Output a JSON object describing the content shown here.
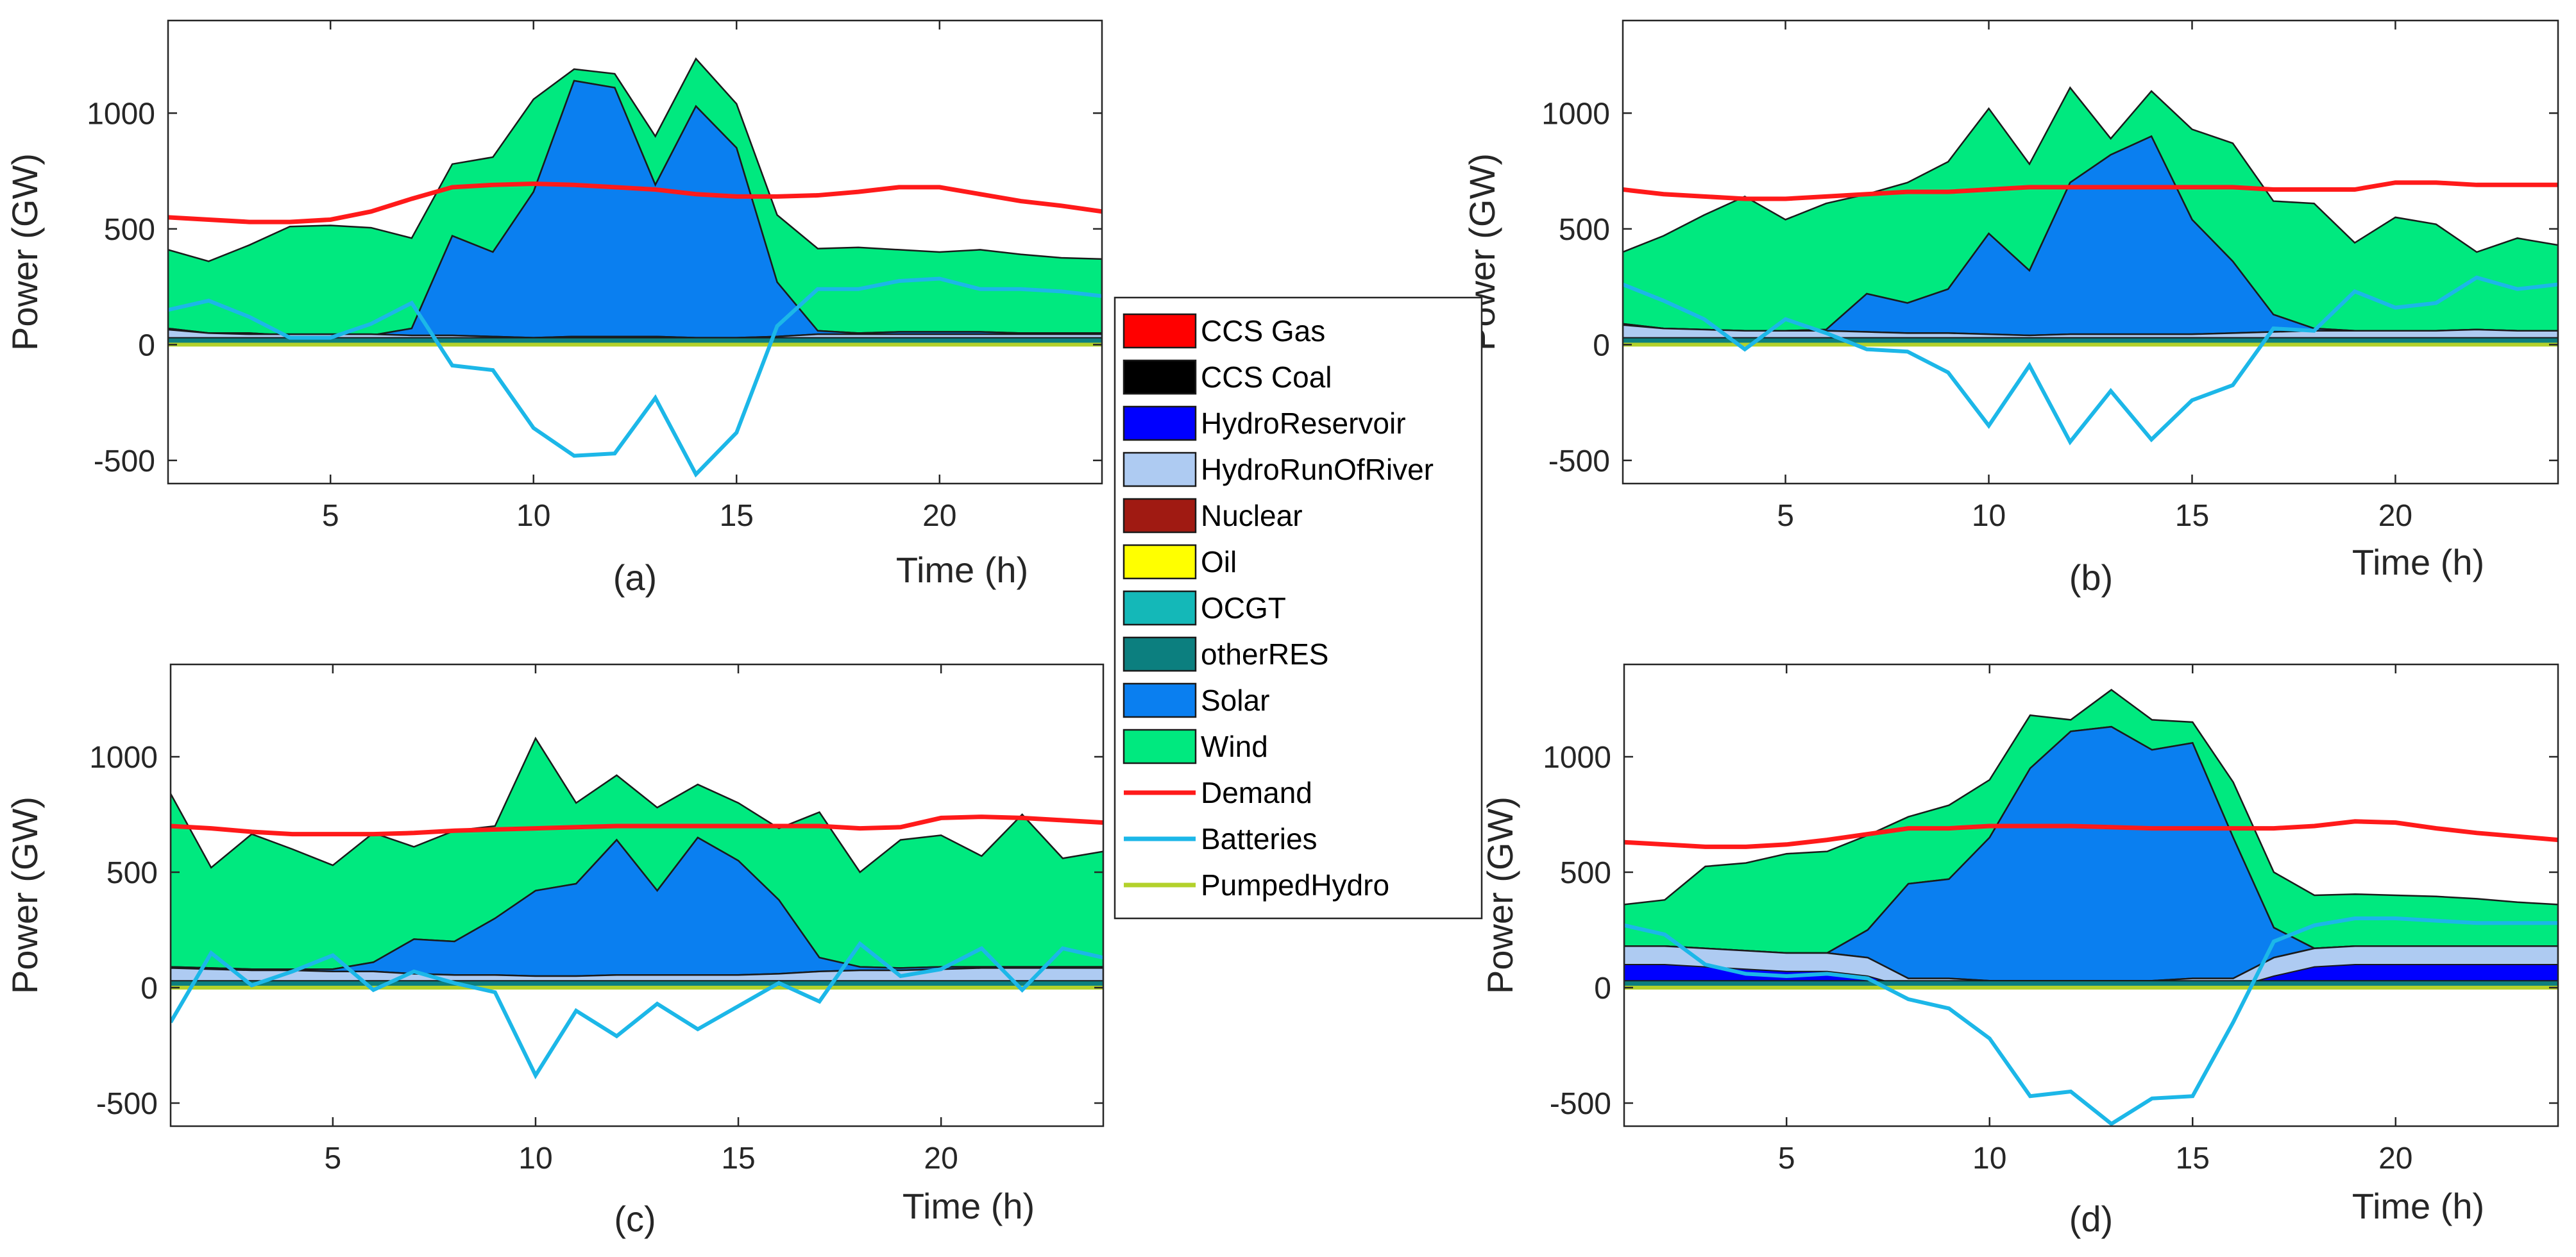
{
  "figure": {
    "legend": [
      {
        "label": "CCS Gas",
        "color": "#ff0000",
        "kind": "patch"
      },
      {
        "label": "CCS Coal",
        "color": "#000000",
        "kind": "patch"
      },
      {
        "label": "HydroReservoir",
        "color": "#0000ff",
        "kind": "patch"
      },
      {
        "label": "HydroRunOfRiver",
        "color": "#aecbf2",
        "kind": "patch"
      },
      {
        "label": "Nuclear",
        "color": "#a01a12",
        "kind": "patch"
      },
      {
        "label": "Oil",
        "color": "#ffff00",
        "kind": "patch"
      },
      {
        "label": "OCGT",
        "color": "#14b8b8",
        "kind": "patch"
      },
      {
        "label": "otherRES",
        "color": "#0c7f7f",
        "kind": "patch"
      },
      {
        "label": "Solar",
        "color": "#0a7ff0",
        "kind": "patch"
      },
      {
        "label": "Wind",
        "color": "#00e97f",
        "kind": "patch"
      },
      {
        "label": "Demand",
        "color": "#ff1a1a",
        "kind": "line"
      },
      {
        "label": "Batteries",
        "color": "#1cb7e8",
        "kind": "line"
      },
      {
        "label": "PumpedHydro",
        "color": "#b3d12b",
        "kind": "line"
      }
    ]
  },
  "chart_data": [
    {
      "type": "area",
      "panel": "(a)",
      "ylabel": "Power (GW)",
      "xlabel": "Time (h)",
      "xlim": [
        1,
        24
      ],
      "ylim": [
        -600,
        1400
      ],
      "xticks": [
        5,
        10,
        15,
        20
      ],
      "yticks": [
        -500,
        0,
        500,
        1000
      ],
      "x": [
        1,
        2,
        3,
        4,
        5,
        6,
        7,
        8,
        9,
        10,
        11,
        12,
        13,
        14,
        15,
        16,
        17,
        18,
        19,
        20,
        21,
        22,
        23,
        24
      ],
      "base": [
        65,
        50,
        45,
        45,
        45,
        45,
        40,
        40,
        35,
        30,
        35,
        35,
        35,
        30,
        30,
        35,
        45,
        45,
        45,
        45,
        45,
        45,
        45,
        45
      ],
      "solar": [
        70,
        50,
        50,
        40,
        40,
        40,
        70,
        470,
        400,
        660,
        1140,
        1110,
        690,
        1030,
        850,
        270,
        60,
        50,
        55,
        55,
        55,
        50,
        50,
        50
      ],
      "total": [
        410,
        360,
        430,
        510,
        515,
        505,
        460,
        780,
        810,
        1060,
        1190,
        1170,
        900,
        1235,
        1040,
        560,
        415,
        420,
        410,
        400,
        410,
        390,
        375,
        370
      ],
      "demand": [
        550,
        540,
        530,
        530,
        540,
        575,
        630,
        680,
        690,
        695,
        690,
        680,
        670,
        650,
        640,
        640,
        645,
        660,
        680,
        680,
        650,
        620,
        600,
        575
      ],
      "batteries": [
        150,
        190,
        120,
        30,
        30,
        90,
        180,
        -90,
        -110,
        -360,
        -480,
        -470,
        -230,
        -560,
        -380,
        80,
        240,
        240,
        275,
        285,
        240,
        240,
        230,
        210
      ],
      "pumped": [
        0,
        0,
        0,
        0,
        0,
        0,
        0,
        0,
        0,
        0,
        0,
        0,
        0,
        0,
        0,
        0,
        0,
        0,
        0,
        0,
        0,
        0,
        0,
        0
      ]
    },
    {
      "type": "area",
      "panel": "(b)",
      "ylabel": "Power (GW)",
      "xlabel": "Time (h)",
      "xlim": [
        1,
        24
      ],
      "ylim": [
        -600,
        1400
      ],
      "xticks": [
        5,
        10,
        15,
        20
      ],
      "yticks": [
        -500,
        0,
        500,
        1000
      ],
      "x": [
        1,
        2,
        3,
        4,
        5,
        6,
        7,
        8,
        9,
        10,
        11,
        12,
        13,
        14,
        15,
        16,
        17,
        18,
        19,
        20,
        21,
        22,
        23,
        24
      ],
      "base": [
        85,
        70,
        65,
        60,
        60,
        60,
        55,
        50,
        50,
        45,
        40,
        45,
        45,
        45,
        45,
        50,
        55,
        60,
        60,
        60,
        60,
        65,
        60,
        60
      ],
      "solar": [
        90,
        70,
        65,
        60,
        60,
        65,
        220,
        180,
        240,
        480,
        320,
        700,
        820,
        900,
        540,
        360,
        130,
        70,
        60,
        60,
        60,
        65,
        60,
        60
      ],
      "total": [
        400,
        470,
        560,
        640,
        540,
        610,
        650,
        700,
        790,
        1020,
        780,
        1110,
        890,
        1095,
        930,
        870,
        620,
        610,
        440,
        550,
        520,
        400,
        460,
        430
      ],
      "demand": [
        670,
        650,
        640,
        630,
        630,
        640,
        650,
        660,
        660,
        670,
        680,
        680,
        680,
        680,
        680,
        680,
        670,
        670,
        670,
        700,
        700,
        690,
        690,
        690
      ],
      "batteries": [
        260,
        190,
        110,
        -20,
        110,
        50,
        -20,
        -30,
        -120,
        -350,
        -90,
        -420,
        -200,
        -410,
        -240,
        -175,
        70,
        60,
        230,
        160,
        180,
        290,
        240,
        260
      ],
      "pumped": [
        0,
        0,
        0,
        0,
        0,
        0,
        0,
        0,
        0,
        0,
        0,
        0,
        0,
        0,
        0,
        0,
        0,
        0,
        0,
        0,
        0,
        0,
        0,
        0
      ]
    },
    {
      "type": "area",
      "panel": "(c)",
      "ylabel": "Power (GW)",
      "xlabel": "Time (h)",
      "xlim": [
        1,
        24
      ],
      "ylim": [
        -600,
        1400
      ],
      "xticks": [
        5,
        10,
        15,
        20
      ],
      "yticks": [
        -500,
        0,
        500,
        1000
      ],
      "x": [
        1,
        2,
        3,
        4,
        5,
        6,
        7,
        8,
        9,
        10,
        11,
        12,
        13,
        14,
        15,
        16,
        17,
        18,
        19,
        20,
        21,
        22,
        23,
        24
      ],
      "base": [
        85,
        80,
        75,
        75,
        70,
        70,
        60,
        55,
        55,
        50,
        50,
        55,
        55,
        55,
        55,
        60,
        70,
        75,
        75,
        80,
        85,
        85,
        85,
        85
      ],
      "solar": [
        90,
        85,
        80,
        80,
        80,
        110,
        210,
        200,
        300,
        420,
        450,
        640,
        420,
        650,
        550,
        380,
        130,
        90,
        85,
        90,
        90,
        90,
        90,
        90
      ],
      "total": [
        840,
        520,
        665,
        600,
        530,
        670,
        610,
        680,
        700,
        1080,
        800,
        920,
        780,
        880,
        800,
        690,
        760,
        500,
        640,
        660,
        570,
        750,
        560,
        590
      ],
      "demand": [
        700,
        690,
        675,
        665,
        665,
        665,
        670,
        680,
        685,
        690,
        695,
        700,
        700,
        700,
        700,
        700,
        700,
        690,
        695,
        735,
        740,
        735,
        725,
        715
      ],
      "batteries": [
        -150,
        150,
        10,
        70,
        140,
        -10,
        70,
        20,
        -20,
        -380,
        -100,
        -210,
        -70,
        -180,
        -80,
        20,
        -60,
        190,
        50,
        80,
        170,
        -10,
        170,
        130
      ],
      "pumped": [
        0,
        0,
        0,
        0,
        0,
        0,
        0,
        0,
        0,
        0,
        0,
        0,
        0,
        0,
        0,
        0,
        0,
        0,
        0,
        0,
        0,
        0,
        0,
        0
      ]
    },
    {
      "type": "area",
      "panel": "(d)",
      "ylabel": "Power (GW)",
      "xlabel": "Time (h)",
      "xlim": [
        1,
        24
      ],
      "ylim": [
        -600,
        1400
      ],
      "xticks": [
        5,
        10,
        15,
        20
      ],
      "yticks": [
        -500,
        0,
        500,
        1000
      ],
      "x": [
        1,
        2,
        3,
        4,
        5,
        6,
        7,
        8,
        9,
        10,
        11,
        12,
        13,
        14,
        15,
        16,
        17,
        18,
        19,
        20,
        21,
        22,
        23,
        24
      ],
      "base": [
        180,
        180,
        170,
        160,
        150,
        150,
        130,
        40,
        40,
        30,
        30,
        30,
        30,
        30,
        40,
        40,
        130,
        170,
        180,
        180,
        180,
        180,
        180,
        180
      ],
      "solar": [
        180,
        180,
        170,
        160,
        150,
        150,
        250,
        450,
        470,
        650,
        950,
        1110,
        1130,
        1030,
        1060,
        650,
        260,
        170,
        180,
        180,
        180,
        180,
        180,
        180
      ],
      "total": [
        360,
        380,
        525,
        540,
        580,
        590,
        660,
        740,
        790,
        900,
        1180,
        1160,
        1290,
        1160,
        1150,
        890,
        500,
        400,
        405,
        400,
        395,
        385,
        370,
        360
      ],
      "demand": [
        630,
        620,
        610,
        610,
        620,
        640,
        665,
        690,
        690,
        700,
        700,
        700,
        695,
        690,
        690,
        690,
        690,
        700,
        720,
        715,
        690,
        670,
        655,
        640
      ],
      "batteries": [
        270,
        230,
        100,
        60,
        50,
        60,
        40,
        -50,
        -90,
        -220,
        -470,
        -450,
        -590,
        -480,
        -470,
        -150,
        200,
        270,
        300,
        300,
        290,
        280,
        280,
        280
      ],
      "pumped": [
        0,
        0,
        0,
        0,
        0,
        0,
        0,
        0,
        0,
        0,
        0,
        0,
        0,
        0,
        0,
        0,
        0,
        0,
        0,
        0,
        0,
        0,
        0,
        0
      ]
    }
  ]
}
